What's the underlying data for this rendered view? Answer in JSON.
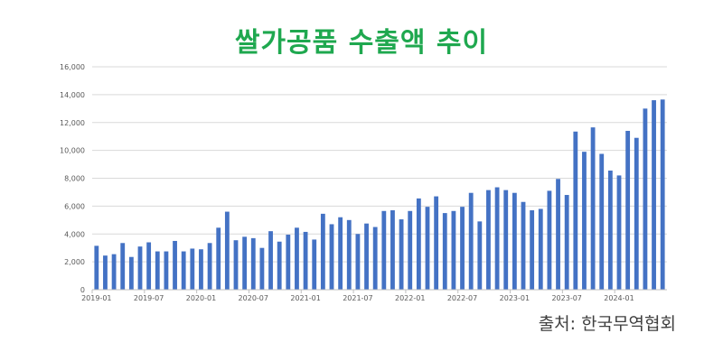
{
  "title": "쌀가공품 수출액 추이",
  "source": "출처: 한국무역협회",
  "colors": {
    "title": "#1fa84f",
    "bar": "#4472c4",
    "grid": "#d9d9d9"
  },
  "chart_data": {
    "type": "bar",
    "title": "쌀가공품 수출액 추이",
    "xlabel": "",
    "ylabel": "",
    "ylim": [
      0,
      16000
    ],
    "yticks": [
      0,
      2000,
      4000,
      6000,
      8000,
      10000,
      12000,
      14000,
      16000
    ],
    "ytick_labels": [
      "0",
      "2,000",
      "4,000",
      "6,000",
      "8,000",
      "10,000",
      "12,000",
      "14,000",
      "16,000"
    ],
    "xtick_labels": [
      "2019-01",
      "2019-07",
      "2020-01",
      "2020-07",
      "2021-01",
      "2021-07",
      "2022-01",
      "2022-07",
      "2023-01",
      "2023-07",
      "2024-01"
    ],
    "xtick_every": 6,
    "grid": true,
    "legend": "none",
    "categories": [
      "2019-01",
      "2019-02",
      "2019-03",
      "2019-04",
      "2019-05",
      "2019-06",
      "2019-07",
      "2019-08",
      "2019-09",
      "2019-10",
      "2019-11",
      "2019-12",
      "2020-01",
      "2020-02",
      "2020-03",
      "2020-04",
      "2020-05",
      "2020-06",
      "2020-07",
      "2020-08",
      "2020-09",
      "2020-10",
      "2020-11",
      "2020-12",
      "2021-01",
      "2021-02",
      "2021-03",
      "2021-04",
      "2021-05",
      "2021-06",
      "2021-07",
      "2021-08",
      "2021-09",
      "2021-10",
      "2021-11",
      "2021-12",
      "2022-01",
      "2022-02",
      "2022-03",
      "2022-04",
      "2022-05",
      "2022-06",
      "2022-07",
      "2022-08",
      "2022-09",
      "2022-10",
      "2022-11",
      "2022-12",
      "2023-01",
      "2023-02",
      "2023-03",
      "2023-04",
      "2023-05",
      "2023-06",
      "2023-07",
      "2023-08",
      "2023-09",
      "2023-10",
      "2023-11",
      "2023-12",
      "2024-01",
      "2024-02",
      "2024-03",
      "2024-04",
      "2024-05",
      "2024-06"
    ],
    "values": [
      3150,
      2450,
      2550,
      3350,
      2350,
      3100,
      3400,
      2750,
      2750,
      3500,
      2750,
      2950,
      2900,
      3350,
      4450,
      5600,
      3550,
      3800,
      3700,
      3000,
      4200,
      3450,
      3950,
      4450,
      4150,
      3600,
      5450,
      4700,
      5200,
      5000,
      4000,
      4750,
      4500,
      5650,
      5700,
      5050,
      5650,
      6550,
      5950,
      6700,
      5500,
      5650,
      5950,
      6950,
      4900,
      7150,
      7350,
      7150,
      6950,
      6300,
      5700,
      5800,
      7100,
      7950,
      6800,
      11350,
      9900,
      11650,
      9750,
      8550,
      8200,
      11400,
      10900,
      13000,
      13600,
      13650
    ]
  }
}
